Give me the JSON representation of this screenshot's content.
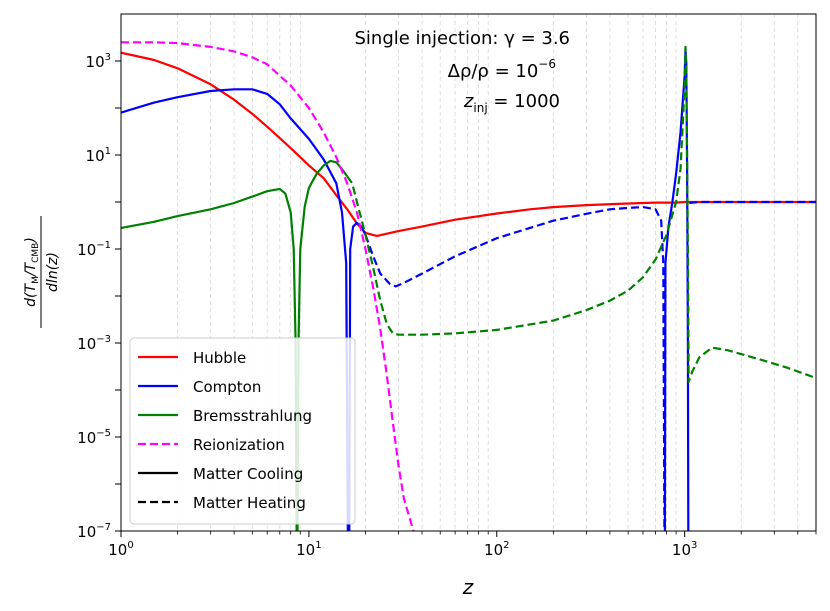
{
  "chart_data": {
    "type": "line",
    "xscale": "log",
    "yscale": "log",
    "xlim": [
      1,
      5000
    ],
    "ylim": [
      1e-07,
      10000
    ],
    "xlabel": "z",
    "ylabel_numerator": "d(T",
    "ylabel_num_sub1": "M",
    "ylabel_num_mid": "/T",
    "ylabel_num_sub2": "CMB",
    "ylabel_num_end": ")",
    "ylabel_denominator": "dln(z)",
    "annotation": {
      "line1": "Single injection: γ = 3.6",
      "line2_prefix": "Δρ/ρ = 10",
      "line2_exp": "−6",
      "line3_var": "z",
      "line3_sub": "inj",
      "line3_suffix": " = 1000"
    },
    "x_ticks": [
      {
        "value": 1,
        "base": "10",
        "exp": "0"
      },
      {
        "value": 10,
        "base": "10",
        "exp": "1"
      },
      {
        "value": 100,
        "base": "10",
        "exp": "2"
      },
      {
        "value": 1000,
        "base": "10",
        "exp": "3"
      }
    ],
    "y_ticks": [
      {
        "value": 1e-07,
        "base": "10",
        "exp": "−7"
      },
      {
        "value": 1e-05,
        "base": "10",
        "exp": "−5"
      },
      {
        "value": 0.001,
        "base": "10",
        "exp": "−3"
      },
      {
        "value": 0.1,
        "base": "10",
        "exp": "−1"
      },
      {
        "value": 10,
        "base": "10",
        "exp": "1"
      },
      {
        "value": 1000,
        "base": "10",
        "exp": "3"
      }
    ],
    "legend": [
      {
        "label": "Hubble",
        "color": "#ff0000",
        "dash": "solid"
      },
      {
        "label": "Compton",
        "color": "#0000ff",
        "dash": "solid"
      },
      {
        "label": "Bremsstrahlung",
        "color": "#008000",
        "dash": "solid"
      },
      {
        "label": "Reionization",
        "color": "#ff00ff",
        "dash": "dashed"
      },
      {
        "label": "Matter Cooling",
        "color": "#000000",
        "dash": "solid"
      },
      {
        "label": "Matter Heating",
        "color": "#000000",
        "dash": "dashed"
      }
    ],
    "legend_position": "lower-left",
    "grid": "vertical minor dashed",
    "series": [
      {
        "name": "Hubble",
        "color": "#ff0000",
        "segments": [
          {
            "style": "solid",
            "points": [
              [
                1,
                1500
              ],
              [
                1.5,
                1050
              ],
              [
                2,
                700
              ],
              [
                3,
                320
              ],
              [
                4,
                150
              ],
              [
                5,
                75
              ],
              [
                6,
                40
              ],
              [
                8,
                14
              ],
              [
                10,
                6
              ],
              [
                12,
                3.2
              ],
              [
                14,
                1.4
              ],
              [
                16,
                0.7
              ],
              [
                18,
                0.35
              ],
              [
                20,
                0.22
              ],
              [
                23,
                0.19
              ],
              [
                30,
                0.24
              ],
              [
                40,
                0.3
              ],
              [
                60,
                0.42
              ],
              [
                100,
                0.57
              ],
              [
                150,
                0.7
              ],
              [
                200,
                0.78
              ],
              [
                300,
                0.86
              ],
              [
                500,
                0.93
              ],
              [
                700,
                0.97
              ],
              [
                900,
                0.97
              ],
              [
                1000,
                1.0
              ],
              [
                1100,
                1.0
              ],
              [
                2000,
                1.0
              ],
              [
                5000,
                1.0
              ]
            ]
          }
        ]
      },
      {
        "name": "Compton",
        "color": "#0000ff",
        "segments": [
          {
            "style": "solid",
            "points": [
              [
                1,
                80
              ],
              [
                1.5,
                130
              ],
              [
                2,
                170
              ],
              [
                3,
                230
              ],
              [
                4,
                250
              ],
              [
                5,
                250
              ],
              [
                6,
                200
              ],
              [
                7,
                120
              ],
              [
                8,
                60
              ],
              [
                10,
                22
              ],
              [
                12,
                8
              ],
              [
                14,
                2.5
              ],
              [
                15,
                0.6
              ],
              [
                15.8,
                0.05
              ],
              [
                16.1,
                1e-07
              ]
            ]
          },
          {
            "style": "solid",
            "points": [
              [
                16.4,
                1e-07
              ],
              [
                16.6,
                0.1
              ],
              [
                17.2,
                0.3
              ],
              [
                18,
                0.36
              ],
              [
                19,
                0.3
              ],
              [
                20,
                0.2
              ]
            ]
          },
          {
            "style": "dashed",
            "points": [
              [
                20,
                0.2
              ],
              [
                22,
                0.07
              ],
              [
                24,
                0.03
              ],
              [
                27,
                0.018
              ],
              [
                29,
                0.016
              ],
              [
                32,
                0.019
              ],
              [
                40,
                0.03
              ],
              [
                60,
                0.07
              ],
              [
                100,
                0.17
              ],
              [
                200,
                0.4
              ],
              [
                300,
                0.56
              ],
              [
                400,
                0.7
              ],
              [
                500,
                0.75
              ],
              [
                600,
                0.78
              ],
              [
                700,
                0.7
              ],
              [
                750,
                0.4
              ],
              [
                770,
                0.05
              ],
              [
                780,
                1e-07
              ]
            ]
          },
          {
            "style": "solid",
            "points": [
              [
                785,
                1e-07
              ],
              [
                790,
                0.05
              ],
              [
                820,
                0.3
              ],
              [
                860,
                1
              ],
              [
                900,
                4
              ],
              [
                950,
                30
              ],
              [
                1000,
                500
              ],
              [
                1010,
                1800
              ],
              [
                1020,
                900
              ],
              [
                1030,
                5
              ],
              [
                1040,
                0.001
              ],
              [
                1045,
                1e-07
              ]
            ]
          },
          {
            "style": "dashed",
            "points": [
              [
                1060,
                0.95
              ],
              [
                1200,
                1.0
              ],
              [
                2000,
                1.0
              ],
              [
                5000,
                1.0
              ]
            ]
          }
        ]
      },
      {
        "name": "Bremsstrahlung",
        "color": "#008000",
        "segments": [
          {
            "style": "solid",
            "points": [
              [
                1,
                0.28
              ],
              [
                1.5,
                0.38
              ],
              [
                2,
                0.5
              ],
              [
                3,
                0.7
              ],
              [
                4,
                0.95
              ],
              [
                5,
                1.3
              ],
              [
                6,
                1.7
              ],
              [
                7,
                1.9
              ],
              [
                7.5,
                1.5
              ],
              [
                8,
                0.6
              ],
              [
                8.3,
                0.1
              ],
              [
                8.5,
                0.001
              ],
              [
                8.6,
                1e-07
              ]
            ]
          },
          {
            "style": "solid",
            "points": [
              [
                8.7,
                1e-07
              ],
              [
                8.8,
                0.001
              ],
              [
                9,
                0.1
              ],
              [
                9.5,
                0.8
              ],
              [
                10,
                2
              ],
              [
                11,
                4
              ],
              [
                12,
                6
              ],
              [
                13,
                7.5
              ],
              [
                14,
                7
              ],
              [
                15,
                5
              ],
              [
                16,
                3.5
              ]
            ]
          },
          {
            "style": "dashed",
            "points": [
              [
                16,
                3.5
              ],
              [
                17,
                2.5
              ],
              [
                18,
                1
              ],
              [
                20,
                0.2
              ],
              [
                22,
                0.04
              ],
              [
                24,
                0.008
              ],
              [
                26,
                0.0025
              ],
              [
                28,
                0.0016
              ],
              [
                30,
                0.0015
              ],
              [
                40,
                0.0015
              ],
              [
                60,
                0.0016
              ],
              [
                100,
                0.0019
              ],
              [
                200,
                0.003
              ],
              [
                300,
                0.005
              ],
              [
                400,
                0.008
              ],
              [
                500,
                0.013
              ],
              [
                600,
                0.025
              ],
              [
                700,
                0.06
              ],
              [
                800,
                0.2
              ],
              [
                900,
                1
              ],
              [
                950,
                5
              ],
              [
                1000,
                300
              ],
              [
                1010,
                2000
              ],
              [
                1020,
                500
              ],
              [
                1030,
                10
              ],
              [
                1040,
                0.1
              ],
              [
                1050,
                0.00015
              ],
              [
                1100,
                0.00025
              ],
              [
                1200,
                0.0005
              ],
              [
                1400,
                0.0008
              ],
              [
                1700,
                0.0007
              ],
              [
                2500,
                0.00045
              ],
              [
                3500,
                0.0003
              ],
              [
                5000,
                0.00018
              ]
            ]
          }
        ]
      },
      {
        "name": "Reionization",
        "color": "#ff00ff",
        "segments": [
          {
            "style": "dashed",
            "points": [
              [
                1,
                2500
              ],
              [
                1.5,
                2500
              ],
              [
                2,
                2400
              ],
              [
                3,
                2000
              ],
              [
                4,
                1600
              ],
              [
                5,
                1200
              ],
              [
                6,
                850
              ],
              [
                8,
                300
              ],
              [
                10,
                100
              ],
              [
                12,
                30
              ],
              [
                14,
                9
              ],
              [
                16,
                2.5
              ],
              [
                18,
                0.6
              ],
              [
                20,
                0.1
              ],
              [
                22,
                0.015
              ],
              [
                24,
                0.002
              ],
              [
                26,
                0.0002
              ],
              [
                28,
                2e-05
              ],
              [
                30,
                2.5e-06
              ],
              [
                32,
                5e-07
              ],
              [
                36,
                1e-07
              ]
            ]
          }
        ]
      }
    ]
  }
}
